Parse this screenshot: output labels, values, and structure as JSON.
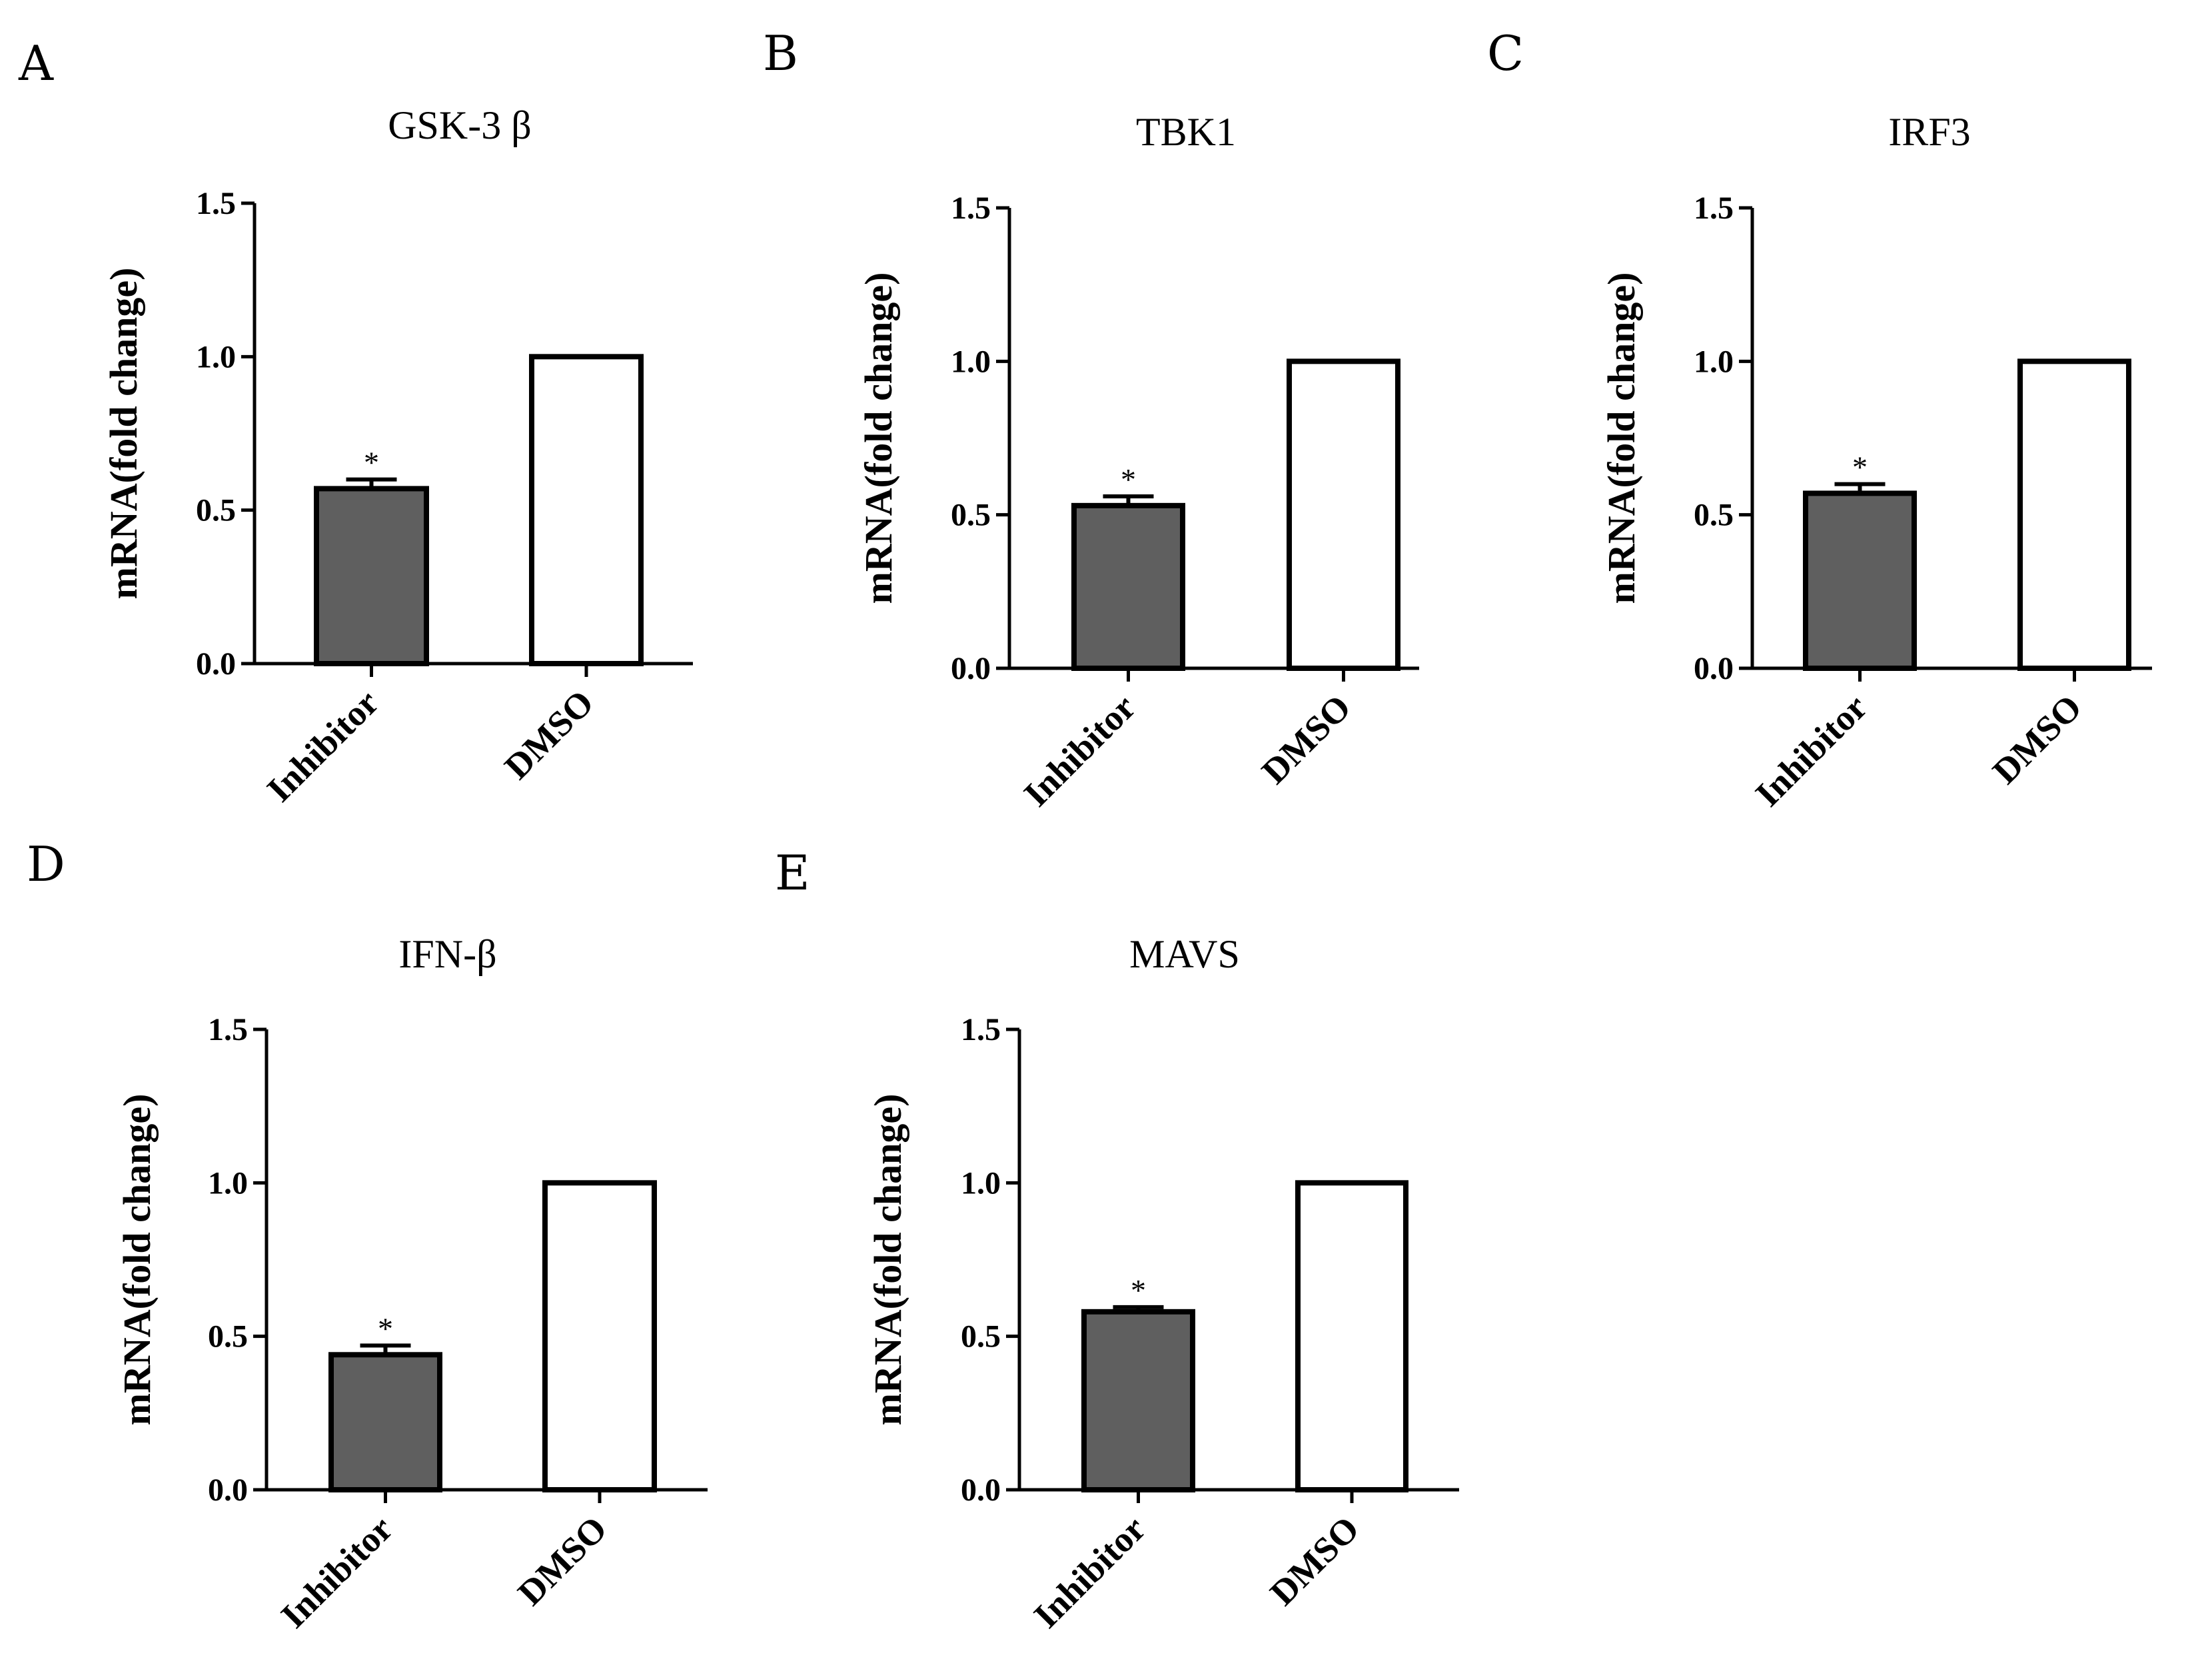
{
  "figure": {
    "background": "#ffffff",
    "colors": {
      "inhibitor_fill": "#5f5f5f",
      "dmso_fill": "#ffffff",
      "stroke": "#000000"
    }
  },
  "chart_data": [
    {
      "panel": "A",
      "type": "bar",
      "title": "GSK-3 β",
      "ylabel": "mRNA(fold change)",
      "xlabel": "",
      "ylim": [
        0,
        1.5
      ],
      "yticks": [
        "0.0",
        "0.5",
        "1.0",
        "1.5"
      ],
      "categories": [
        "Inhibitor",
        "DMSO"
      ],
      "values": [
        0.57,
        1.0
      ],
      "errors": [
        0.03,
        0
      ],
      "significance": [
        "*",
        ""
      ]
    },
    {
      "panel": "B",
      "type": "bar",
      "title": "TBK1",
      "ylabel": "mRNA(fold change)",
      "xlabel": "",
      "ylim": [
        0,
        1.5
      ],
      "yticks": [
        "0.0",
        "0.5",
        "1.0",
        "1.5"
      ],
      "categories": [
        "Inhibitor",
        "DMSO"
      ],
      "values": [
        0.53,
        1.0
      ],
      "errors": [
        0.03,
        0
      ],
      "significance": [
        "*",
        ""
      ]
    },
    {
      "panel": "C",
      "type": "bar",
      "title": "IRF3",
      "ylabel": "mRNA(fold change)",
      "xlabel": "",
      "ylim": [
        0,
        1.5
      ],
      "yticks": [
        "0.0",
        "0.5",
        "1.0",
        "1.5"
      ],
      "categories": [
        "Inhibitor",
        "DMSO"
      ],
      "values": [
        0.57,
        1.0
      ],
      "errors": [
        0.03,
        0
      ],
      "significance": [
        "*",
        ""
      ]
    },
    {
      "panel": "D",
      "type": "bar",
      "title": "IFN-β",
      "ylabel": "mRNA(fold change)",
      "xlabel": "",
      "ylim": [
        0,
        1.5
      ],
      "yticks": [
        "0.0",
        "0.5",
        "1.0",
        "1.5"
      ],
      "categories": [
        "Inhibitor",
        "DMSO"
      ],
      "values": [
        0.44,
        1.0
      ],
      "errors": [
        0.03,
        0
      ],
      "significance": [
        "*",
        ""
      ]
    },
    {
      "panel": "E",
      "type": "bar",
      "title": "MAVS",
      "ylabel": "mRNA(fold change)",
      "xlabel": "",
      "ylim": [
        0,
        1.5
      ],
      "yticks": [
        "0.0",
        "0.5",
        "1.0",
        "1.5"
      ],
      "categories": [
        "Inhibitor",
        "DMSO"
      ],
      "values": [
        0.58,
        1.0
      ],
      "errors": [
        0.015,
        0
      ],
      "significance": [
        "*",
        ""
      ]
    }
  ]
}
